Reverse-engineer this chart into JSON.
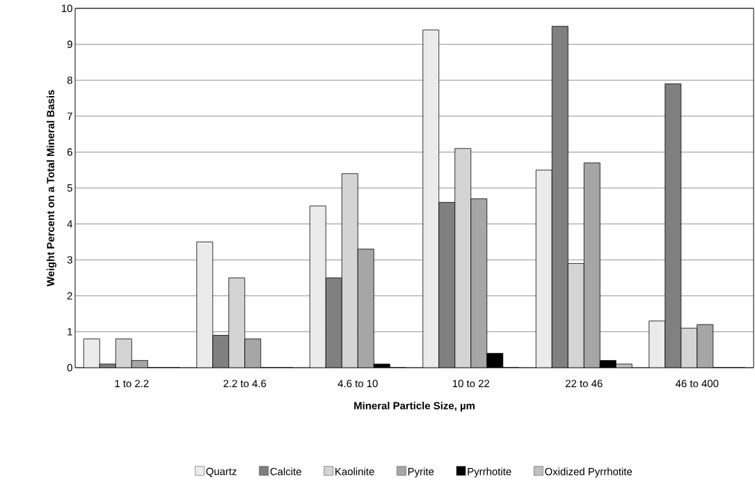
{
  "chart_data": {
    "type": "bar",
    "xlabel": "Mineral Particle Size, µm",
    "ylabel": "Weight Percent on a Total Mineral Basis",
    "categories": [
      "1 to 2.2",
      "2.2 to 4.6",
      "4.6 to 10",
      "10 to 22",
      "22 to 46",
      "46 to 400"
    ],
    "series": [
      {
        "name": "Quartz",
        "color": "#ebebeb",
        "values": [
          0.8,
          3.5,
          4.5,
          9.4,
          5.5,
          1.3
        ]
      },
      {
        "name": "Calcite",
        "color": "#808080",
        "values": [
          0.1,
          0.9,
          2.5,
          4.6,
          9.5,
          7.9
        ]
      },
      {
        "name": "Kaolinite",
        "color": "#d4d4d4",
        "values": [
          0.8,
          2.5,
          5.4,
          6.1,
          2.9,
          1.1
        ]
      },
      {
        "name": "Pyrite",
        "color": "#a6a6a6",
        "values": [
          0.2,
          0.8,
          3.3,
          4.7,
          5.7,
          1.2
        ]
      },
      {
        "name": "Pyrrhotite",
        "color": "#000000",
        "values": [
          0,
          0,
          0.1,
          0.4,
          0.2,
          0
        ]
      },
      {
        "name": "Oxidized Pyrrhotite",
        "color": "#c0c0c0",
        "values": [
          0,
          0,
          0,
          0,
          0.1,
          0
        ]
      }
    ],
    "ylim": [
      0,
      10
    ],
    "yticks": [
      0,
      1,
      2,
      3,
      4,
      5,
      6,
      7,
      8,
      9,
      10
    ],
    "grid": "y",
    "legend": "bottom"
  }
}
